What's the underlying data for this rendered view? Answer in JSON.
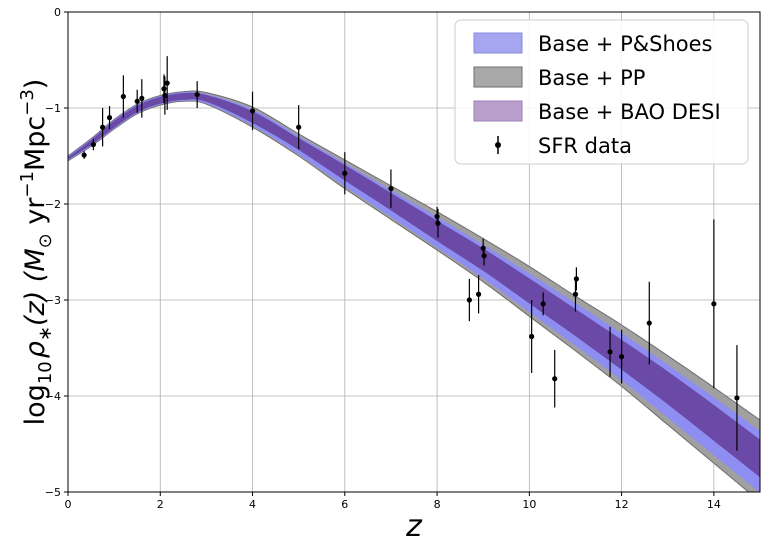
{
  "chart_data": {
    "type": "area",
    "xlabel": "z",
    "ylabel_parts": {
      "log": "log",
      "log_sub": "10",
      "rho": "ρ",
      "rho_sub": "∗",
      "arg": "(z) (",
      "msun": "M",
      "msun_sub": "⊙",
      "yr": " yr",
      "yr_exp": "−1",
      "mpc": "Mpc",
      "mpc_exp": "−3",
      "close": ")"
    },
    "xlim": [
      0,
      15
    ],
    "ylim": [
      -5,
      0
    ],
    "xticks": [
      0,
      2,
      4,
      6,
      8,
      10,
      12,
      14
    ],
    "yticks": [
      0,
      -1,
      -2,
      -3,
      -4,
      -5
    ],
    "xtick_labels": [
      "0",
      "2",
      "4",
      "6",
      "8",
      "10",
      "12",
      "14"
    ],
    "ytick_labels": [
      "0",
      "−1",
      "−2",
      "−3",
      "−4",
      "−5"
    ],
    "grid": true,
    "legend_position": "top-right",
    "series": [
      {
        "name": "Base + PP",
        "kind": "band",
        "color": "#a0a0a0",
        "edge": "#6e6e6e",
        "x": [
          0,
          0.5,
          1,
          1.5,
          2,
          2.5,
          3,
          4,
          5,
          6,
          7,
          8,
          9,
          10,
          11,
          12,
          13,
          14,
          15
        ],
        "lower": [
          -1.55,
          -1.4,
          -1.22,
          -1.06,
          -0.97,
          -0.93,
          -0.96,
          -1.2,
          -1.5,
          -1.84,
          -2.16,
          -2.48,
          -2.81,
          -3.17,
          -3.53,
          -3.9,
          -4.3,
          -4.7,
          -5.1
        ],
        "upper": [
          -1.5,
          -1.32,
          -1.12,
          -0.96,
          -0.87,
          -0.83,
          -0.84,
          -0.99,
          -1.27,
          -1.54,
          -1.81,
          -2.08,
          -2.36,
          -2.65,
          -2.96,
          -3.26,
          -3.58,
          -3.91,
          -4.25
        ]
      },
      {
        "name": "Base + P&Shoes",
        "kind": "band",
        "color": "#8e8ef2",
        "edge": "#8e8ef2",
        "x": [
          0,
          0.5,
          1,
          1.5,
          2,
          2.5,
          3,
          4,
          5,
          6,
          7,
          8,
          9,
          10,
          11,
          12,
          13,
          14,
          15
        ],
        "lower": [
          -1.54,
          -1.39,
          -1.21,
          -1.05,
          -0.96,
          -0.92,
          -0.95,
          -1.18,
          -1.48,
          -1.81,
          -2.13,
          -2.45,
          -2.77,
          -3.12,
          -3.47,
          -3.83,
          -4.22,
          -4.61,
          -5.0
        ],
        "upper": [
          -1.51,
          -1.33,
          -1.13,
          -0.97,
          -0.88,
          -0.84,
          -0.86,
          -1.02,
          -1.3,
          -1.58,
          -1.86,
          -2.14,
          -2.43,
          -2.73,
          -3.04,
          -3.35,
          -3.68,
          -4.02,
          -4.37
        ]
      },
      {
        "name": "Base + BAO DESI",
        "kind": "band",
        "color": "#6a4aa6",
        "edge": "#6a4aa6",
        "x": [
          0,
          0.5,
          1,
          1.5,
          2,
          2.5,
          3,
          4,
          5,
          6,
          7,
          8,
          9,
          10,
          11,
          12,
          13,
          14,
          15
        ],
        "lower": [
          -1.53,
          -1.38,
          -1.2,
          -1.04,
          -0.95,
          -0.91,
          -0.93,
          -1.15,
          -1.43,
          -1.75,
          -2.06,
          -2.38,
          -2.69,
          -3.03,
          -3.37,
          -3.72,
          -4.08,
          -4.46,
          -4.84
        ],
        "upper": [
          -1.52,
          -1.34,
          -1.14,
          -0.98,
          -0.89,
          -0.85,
          -0.87,
          -1.04,
          -1.32,
          -1.6,
          -1.89,
          -2.18,
          -2.47,
          -2.78,
          -3.1,
          -3.42,
          -3.75,
          -4.1,
          -4.46
        ]
      },
      {
        "name": "SFR data",
        "kind": "errorbar",
        "color": "#000000",
        "points": [
          {
            "x": 0.35,
            "y": -1.49,
            "err": 0.04
          },
          {
            "x": 0.55,
            "y": -1.38,
            "err": 0.06
          },
          {
            "x": 0.75,
            "y": -1.2,
            "err": 0.2
          },
          {
            "x": 0.9,
            "y": -1.1,
            "err": 0.12
          },
          {
            "x": 1.2,
            "y": -0.88,
            "err": 0.22
          },
          {
            "x": 1.5,
            "y": -0.93,
            "err": 0.12
          },
          {
            "x": 1.6,
            "y": -0.9,
            "err": 0.2
          },
          {
            "x": 2.08,
            "y": -0.8,
            "err": 0.15
          },
          {
            "x": 2.1,
            "y": -0.87,
            "err": 0.2
          },
          {
            "x": 2.15,
            "y": -0.74,
            "err": 0.28
          },
          {
            "x": 2.8,
            "y": -0.86,
            "err": 0.14
          },
          {
            "x": 4.0,
            "y": -1.03,
            "err": 0.2
          },
          {
            "x": 5.0,
            "y": -1.2,
            "err": 0.23
          },
          {
            "x": 6.0,
            "y": -1.68,
            "err": 0.22
          },
          {
            "x": 7.0,
            "y": -1.84,
            "err": 0.2
          },
          {
            "x": 8.0,
            "y": -2.13,
            "err": 0.1
          },
          {
            "x": 8.02,
            "y": -2.2,
            "err": 0.15
          },
          {
            "x": 8.7,
            "y": -3.0,
            "err": 0.22
          },
          {
            "x": 8.9,
            "y": -2.94,
            "err": 0.2
          },
          {
            "x": 9.0,
            "y": -2.46,
            "err": 0.1
          },
          {
            "x": 9.02,
            "y": -2.54,
            "err": 0.1
          },
          {
            "x": 10.05,
            "y": -3.38,
            "err": 0.38
          },
          {
            "x": 10.3,
            "y": -3.04,
            "err": 0.12
          },
          {
            "x": 10.55,
            "y": -3.82,
            "err": 0.3
          },
          {
            "x": 11.0,
            "y": -2.94,
            "err": 0.18
          },
          {
            "x": 11.02,
            "y": -2.78,
            "err": 0.12
          },
          {
            "x": 11.75,
            "y": -3.54,
            "err": 0.26
          },
          {
            "x": 12.0,
            "y": -3.59,
            "err": 0.28
          },
          {
            "x": 12.6,
            "y": -3.24,
            "err": 0.43
          },
          {
            "x": 14.0,
            "y": -3.04,
            "err": 0.88
          },
          {
            "x": 14.5,
            "y": -4.02,
            "err": 0.55
          }
        ]
      }
    ],
    "legend": [
      {
        "label": "Base + P&Shoes",
        "color": "#a6a6f0",
        "edge": "#8888e0",
        "marker": "patch"
      },
      {
        "label": "Base + PP",
        "color": "#a8a8a8",
        "edge": "#6e6e6e",
        "marker": "patch"
      },
      {
        "label": "Base + BAO DESI",
        "color": "#b9a0cc",
        "edge": "#9d7fb6",
        "marker": "patch"
      },
      {
        "label": "SFR data",
        "color": "#000000",
        "marker": "errorbar"
      }
    ]
  }
}
